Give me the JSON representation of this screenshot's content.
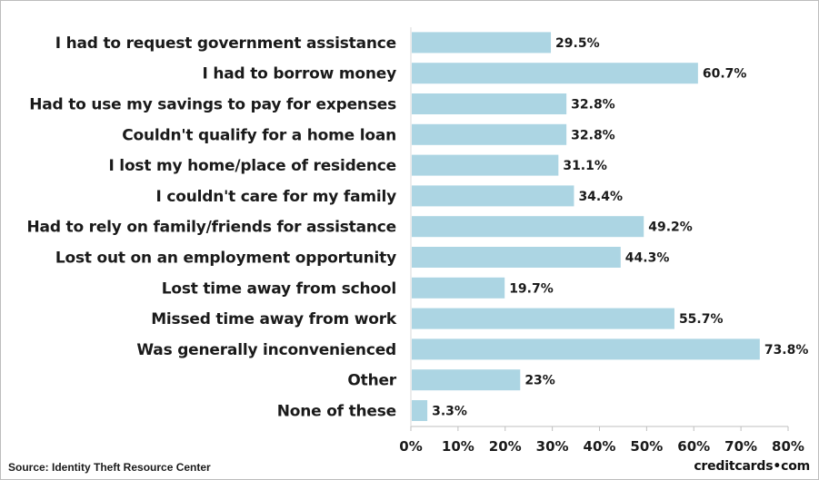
{
  "chart_data": {
    "type": "bar",
    "orientation": "horizontal",
    "categories": [
      "I had to request government assistance",
      "I had to borrow money",
      "Had to use my savings to pay for expenses",
      "Couldn't qualify for a home loan",
      "I lost my home/place of residence",
      "I couldn't care for my family",
      "Had to rely on family/friends for assistance",
      "Lost out on an employment opportunity",
      "Lost time away from school",
      "Missed time away from work",
      "Was generally inconvenienced",
      "Other",
      "None of these"
    ],
    "values": [
      29.5,
      60.7,
      32.8,
      32.8,
      31.1,
      34.4,
      49.2,
      44.3,
      19.7,
      55.7,
      73.8,
      23,
      3.3
    ],
    "value_labels": [
      "29.5%",
      "60.7%",
      "32.8%",
      "32.8%",
      "31.1%",
      "34.4%",
      "49.2%",
      "44.3%",
      "19.7%",
      "55.7%",
      "73.8%",
      "23%",
      "3.3%"
    ],
    "xlim": [
      0,
      80
    ],
    "x_ticks": [
      0,
      10,
      20,
      30,
      40,
      50,
      60,
      70,
      80
    ],
    "x_tick_labels": [
      "0%",
      "10%",
      "20%",
      "30%",
      "40%",
      "50%",
      "60%",
      "70%",
      "80%"
    ],
    "bar_color": "#acd5e3",
    "grid": false,
    "legend": "none"
  },
  "footer": {
    "source": "Source: Identity Theft Resource Center",
    "brand": "creditcards•com"
  }
}
